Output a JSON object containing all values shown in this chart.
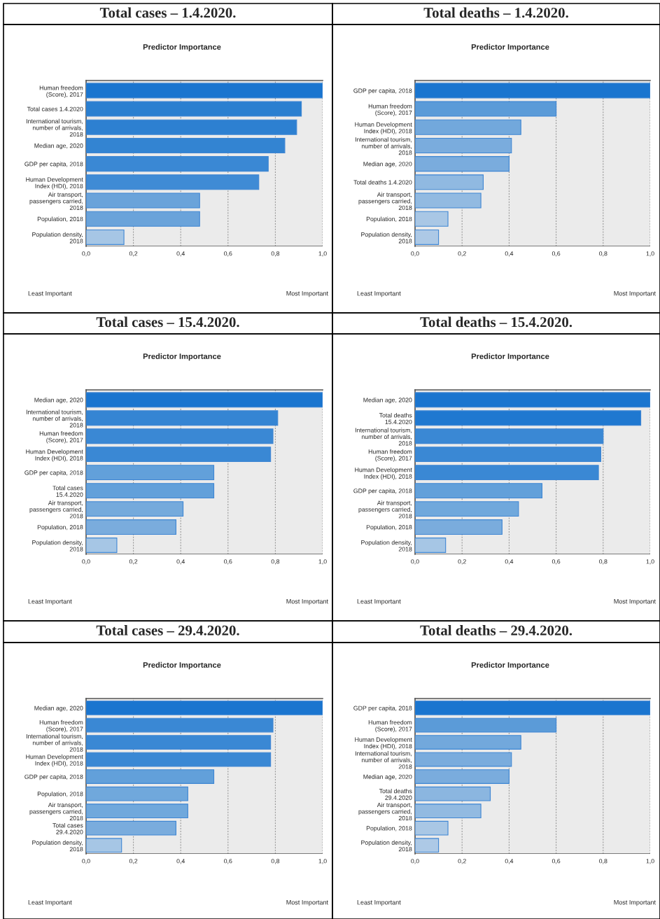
{
  "chart_data": [
    {
      "type": "bar",
      "orientation": "horizontal",
      "title": "Total cases – 1.4.2020.",
      "subtitle": "Predictor Importance",
      "categories": [
        "Human freedom\n(Score), 2017",
        "Total cases 1.4.2020",
        "International tourism,\nnumber of arrivals,\n2018",
        "Median age, 2020",
        "GDP per capita, 2018",
        "Human Development\nIndex (HDI), 2018",
        "Air transport,\npassengers carried,\n2018",
        "Population, 2018",
        "Population density,\n2018"
      ],
      "values": [
        1.0,
        0.91,
        0.89,
        0.84,
        0.77,
        0.73,
        0.48,
        0.48,
        0.16
      ],
      "colors": [
        "#1a75cf",
        "#2a7fd0",
        "#2d80d1",
        "#3384d2",
        "#3a88d4",
        "#3f8bd5",
        "#6aa3da",
        "#6aa3da",
        "#a6c6e5"
      ],
      "xlim": [
        0,
        1
      ],
      "xticks": [
        {
          "value": 0,
          "label": "0,0"
        },
        {
          "value": 0.2,
          "label": "0,2"
        },
        {
          "value": 0.4,
          "label": "0,4"
        },
        {
          "value": 0.6,
          "label": "0,6"
        },
        {
          "value": 0.8,
          "label": "0,8"
        },
        {
          "value": 1,
          "label": "1,0"
        }
      ],
      "grid": "x",
      "annotations": [
        "Least Important",
        "Most Important"
      ]
    },
    {
      "type": "bar",
      "orientation": "horizontal",
      "title": "Total deaths – 1.4.2020.",
      "subtitle": "Predictor Importance",
      "categories": [
        "GDP per capita, 2018",
        "Human freedom\n(Score), 2017",
        "Human Development\nIndex (HDI), 2018",
        "International tourism,\nnumber of arrivals,\n2018",
        "Median age, 2020",
        "Total deaths 1.4.2020",
        "Air transport,\npassengers carried,\n2018",
        "Population, 2018",
        "Population density,\n2018"
      ],
      "values": [
        1.0,
        0.6,
        0.45,
        0.41,
        0.4,
        0.29,
        0.28,
        0.14,
        0.1
      ],
      "colors": [
        "#1a75cf",
        "#5b9bd8",
        "#72a8dc",
        "#7aacdd",
        "#7aacdd",
        "#90b9e1",
        "#92bae1",
        "#a9c7e5",
        "#adc9e6"
      ],
      "xlim": [
        0,
        1
      ],
      "xticks": [
        {
          "value": 0,
          "label": "0,0"
        },
        {
          "value": 0.2,
          "label": "0,2"
        },
        {
          "value": 0.4,
          "label": "0,4"
        },
        {
          "value": 0.6,
          "label": "0,6"
        },
        {
          "value": 0.8,
          "label": "0,8"
        },
        {
          "value": 1,
          "label": "1,0"
        }
      ],
      "grid": "x",
      "annotations": [
        "Least Important",
        "Most Important"
      ]
    },
    {
      "type": "bar",
      "orientation": "horizontal",
      "title": "Total cases – 15.4.2020.",
      "subtitle": "Predictor Importance",
      "categories": [
        "Median age, 2020",
        "International tourism,\nnumber of arrivals,\n2018",
        "Human freedom\n(Score), 2017",
        "Human Development\nIndex (HDI), 2018",
        "GDP per capita, 2018",
        "Total cases\n15.4.2020",
        "Air transport,\npassengers carried,\n2018",
        "Population, 2018",
        "Population density,\n2018"
      ],
      "values": [
        1.0,
        0.81,
        0.79,
        0.78,
        0.54,
        0.54,
        0.41,
        0.38,
        0.13
      ],
      "colors": [
        "#1a75cf",
        "#3585d3",
        "#3a88d4",
        "#3a88d4",
        "#62a0da",
        "#62a0da",
        "#75aadc",
        "#7aacdd",
        "#a6c6e5"
      ],
      "xlim": [
        0,
        1
      ],
      "xticks": [
        {
          "value": 0,
          "label": "0,0"
        },
        {
          "value": 0.2,
          "label": "0,2"
        },
        {
          "value": 0.4,
          "label": "0,4"
        },
        {
          "value": 0.6,
          "label": "0,6"
        },
        {
          "value": 0.8,
          "label": "0,8"
        },
        {
          "value": 1,
          "label": "1,0"
        }
      ],
      "grid": "x",
      "annotations": [
        "Least Important",
        "Most Important"
      ]
    },
    {
      "type": "bar",
      "orientation": "horizontal",
      "title": "Total deaths – 15.4.2020.",
      "subtitle": "Predictor Importance",
      "categories": [
        "Median age, 2020",
        "Total deaths\n15.4.2020",
        "International tourism,\nnumber of arrivals,\n2018",
        "Human freedom\n(Score), 2017",
        "Human Development\nIndex (HDI), 2018",
        "GDP per capita, 2018",
        "Air transport,\npassengers carried,\n2018",
        "Population, 2018",
        "Population density,\n2018"
      ],
      "values": [
        1.0,
        0.96,
        0.8,
        0.79,
        0.78,
        0.54,
        0.44,
        0.37,
        0.13
      ],
      "colors": [
        "#1a75cf",
        "#1f78d0",
        "#3a88d4",
        "#3a88d4",
        "#3a88d4",
        "#62a0da",
        "#70a8dc",
        "#7aacdd",
        "#a6c6e5"
      ],
      "xlim": [
        0,
        1
      ],
      "xticks": [
        {
          "value": 0,
          "label": "0,0"
        },
        {
          "value": 0.2,
          "label": "0,2"
        },
        {
          "value": 0.4,
          "label": "0,4"
        },
        {
          "value": 0.6,
          "label": "0,6"
        },
        {
          "value": 0.8,
          "label": "0,8"
        },
        {
          "value": 1,
          "label": "1,0"
        }
      ],
      "grid": "x",
      "annotations": [
        "Least Important",
        "Most Important"
      ]
    },
    {
      "type": "bar",
      "orientation": "horizontal",
      "title": "Total cases – 29.4.2020.",
      "subtitle": "Predictor Importance",
      "categories": [
        "Median age, 2020",
        "Human freedom\n(Score), 2017",
        "International tourism,\nnumber of arrivals,\n2018",
        "Human Development\nIndex (HDI), 2018",
        "GDP per capita, 2018",
        "Population, 2018",
        "Air transport,\npassengers carried,\n2018",
        "Total cases\n29.4.2020",
        "Population density,\n2018"
      ],
      "values": [
        1.0,
        0.79,
        0.78,
        0.78,
        0.54,
        0.43,
        0.43,
        0.38,
        0.15
      ],
      "colors": [
        "#1a75cf",
        "#3a88d4",
        "#3a88d4",
        "#3a88d4",
        "#62a0da",
        "#70a8dc",
        "#70a8dc",
        "#7aacdd",
        "#a6c6e5"
      ],
      "xlim": [
        0,
        1
      ],
      "xticks": [
        {
          "value": 0,
          "label": "0,0"
        },
        {
          "value": 0.2,
          "label": "0,2"
        },
        {
          "value": 0.4,
          "label": "0,4"
        },
        {
          "value": 0.6,
          "label": "0,6"
        },
        {
          "value": 0.8,
          "label": "0,8"
        },
        {
          "value": 1,
          "label": "1,0"
        }
      ],
      "grid": "x",
      "annotations": [
        "Least Important",
        "Most Important"
      ]
    },
    {
      "type": "bar",
      "orientation": "horizontal",
      "title": "Total deaths – 29.4.2020.",
      "subtitle": "Predictor Importance",
      "categories": [
        "GDP per capita, 2018",
        "Human freedom\n(Score), 2017",
        "Human Development\nIndex (HDI), 2018",
        "International tourism,\nnumber of arrivals,\n2018",
        "Median age, 2020",
        "Total deaths\n29.4.2020",
        "Air transport,\npassengers carried,\n2018",
        "Population, 2018",
        "Population density,\n2018"
      ],
      "values": [
        1.0,
        0.6,
        0.45,
        0.41,
        0.4,
        0.32,
        0.28,
        0.14,
        0.1
      ],
      "colors": [
        "#1a75cf",
        "#5b9bd8",
        "#72a8dc",
        "#7aacdd",
        "#7aacdd",
        "#8bb6e0",
        "#92bae1",
        "#a9c7e5",
        "#adc9e6"
      ],
      "xlim": [
        0,
        1
      ],
      "xticks": [
        {
          "value": 0,
          "label": "0,0"
        },
        {
          "value": 0.2,
          "label": "0,2"
        },
        {
          "value": 0.4,
          "label": "0,4"
        },
        {
          "value": 0.6,
          "label": "0,6"
        },
        {
          "value": 0.8,
          "label": "0,8"
        },
        {
          "value": 1,
          "label": "1,0"
        }
      ],
      "grid": "x",
      "annotations": [
        "Least Important",
        "Most Important"
      ]
    }
  ]
}
